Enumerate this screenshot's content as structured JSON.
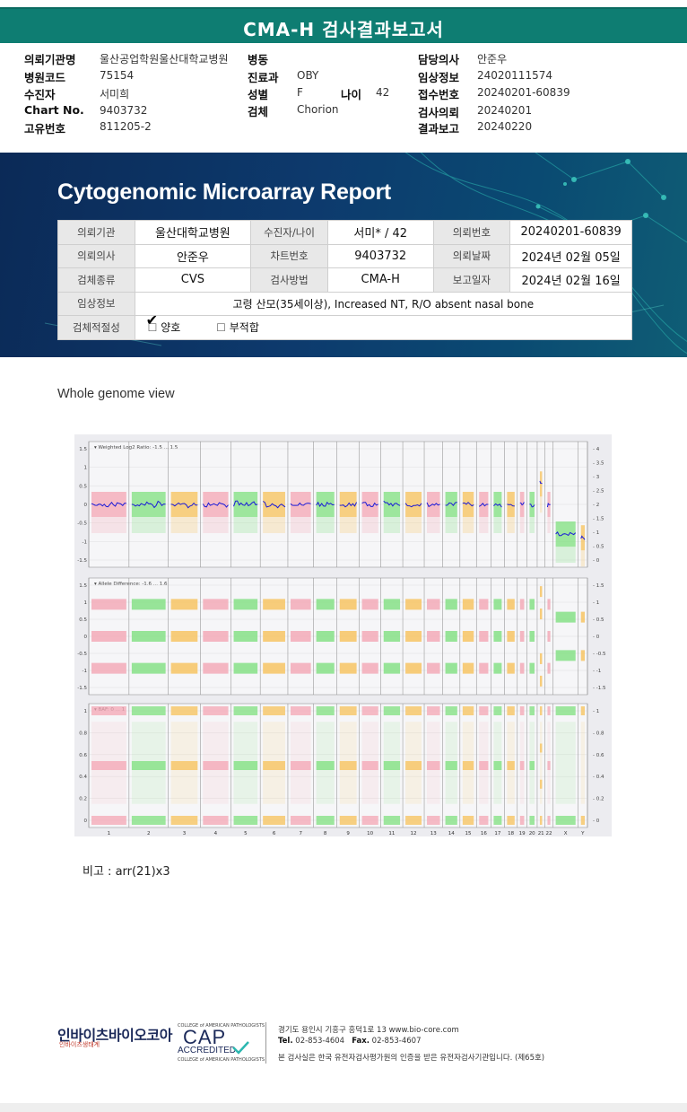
{
  "report_title": "CMA-H 검사결과보고서",
  "header": {
    "hospital_label": "의뢰기관명",
    "hospital_value": "울산공업학원울산대학교병원",
    "code_label": "병원코드",
    "code_value": "75154",
    "patient_label": "수진자",
    "patient_value": "서미희",
    "chart_label": "Chart No.",
    "chart_value": "9403732",
    "unique_label": "고유번호",
    "unique_value": "811205-2",
    "ward_label": "병동",
    "ward_value": "",
    "dept_label": "진료과",
    "dept_value": "OBY",
    "sex_label": "성별",
    "sex_value": "F",
    "age_label": "나이",
    "age_value": "42",
    "specimen_label": "검체",
    "specimen_value": "Chorion",
    "doctor_label": "담당의사",
    "doctor_value": "안준우",
    "clinical_label": "임상정보",
    "clinical_value": "24020111574",
    "receipt_label": "접수번호",
    "receipt_value": "20240201-60839",
    "request_label": "검사의뢰",
    "request_value": "20240201",
    "result_label": "결과보고",
    "result_value": "20240220"
  },
  "report": {
    "title": "Cytogenomic Microarray Report",
    "rows": [
      [
        "의뢰기관",
        "울산대학교병원",
        "수진자/나이",
        "서미* / 42",
        "의뢰번호",
        "20240201-60839"
      ],
      [
        "의뢰의사",
        "안준우",
        "차트번호",
        "9403732",
        "의뢰날짜",
        "2024년 02월 05일"
      ],
      [
        "검체종류",
        "CVS",
        "검사방법",
        "CMA-H",
        "보고일자",
        "2024년 02월 16일"
      ]
    ],
    "clinical_label": "임상정보",
    "clinical_value": "고령 산모(35세이상), Increased NT, R/O absent nasal bone",
    "adequacy_label": "검체적절성",
    "adequacy_ok": "양호",
    "adequacy_bad": "부적합",
    "adequacy_checkmark": "✔",
    "adequacy_box": "☐"
  },
  "genome_view": {
    "label": "Whole genome view",
    "panel1_title": "Weighted Log2 Ratio: -1.5 ... 1.5",
    "panel2_title": "Allele Difference: -1.6 ... 1.6",
    "panel3_title": "BAF: 0 ... 1",
    "panel1_left_ticks": [
      "1.5",
      "1",
      "0.5",
      "0",
      "-0.5",
      "-1",
      "-1.5"
    ],
    "panel1_right_ticks": [
      "4",
      "3.5",
      "3",
      "2.5",
      "2",
      "1.5",
      "1",
      "0.5",
      "0"
    ],
    "panel2_left_ticks": [
      "1.5",
      "1",
      "0.5",
      "0",
      "-0.5",
      "-1",
      "-1.5"
    ],
    "panel2_right_ticks": [
      "1.5",
      "1",
      "0.5",
      "0",
      "-0.5",
      "-1",
      "-1.5"
    ],
    "panel3_left_ticks": [
      "1",
      "0.8",
      "0.6",
      "0.4",
      "0.2",
      "0"
    ],
    "panel3_right_ticks": [
      "1",
      "0.8",
      "0.6",
      "0.4",
      "0.2",
      "0"
    ],
    "chromosomes": [
      "1",
      "2",
      "3",
      "4",
      "5",
      "6",
      "7",
      "8",
      "9",
      "10",
      "11",
      "12",
      "13",
      "14",
      "15",
      "16",
      "17",
      "18",
      "19",
      "20",
      "21",
      "22",
      "X",
      "Y"
    ],
    "colors": {
      "pink": "#f4a6b4",
      "green": "#7fe07f",
      "orange": "#f7c25a",
      "log2_line": "#1a1ad8"
    },
    "trisomy_chromosome": "21"
  },
  "note": "비고 : arr(21)x3",
  "footer": {
    "lab_name": "인바이츠바이오코아",
    "lab_sub": "인바이츠생태계",
    "cap_top": "COLLEGE of AMERICAN PATHOLOGISTS",
    "cap_main": "CAP",
    "cap_accredited": "ACCREDITED",
    "cap_bottom": "COLLEGE of AMERICAN PATHOLOGISTS",
    "address": "경기도 용인시 기흥구 흥덕1로 13   www.bio-core.com",
    "tel_label": "Tel.",
    "tel": "02-853-4604",
    "fax_label": "Fax.",
    "fax": "02-853-4607",
    "certification": "본 검사실은 한국 유전자검사평가원의 인증을 받은 유전자검사기관입니다. (제65호)"
  }
}
